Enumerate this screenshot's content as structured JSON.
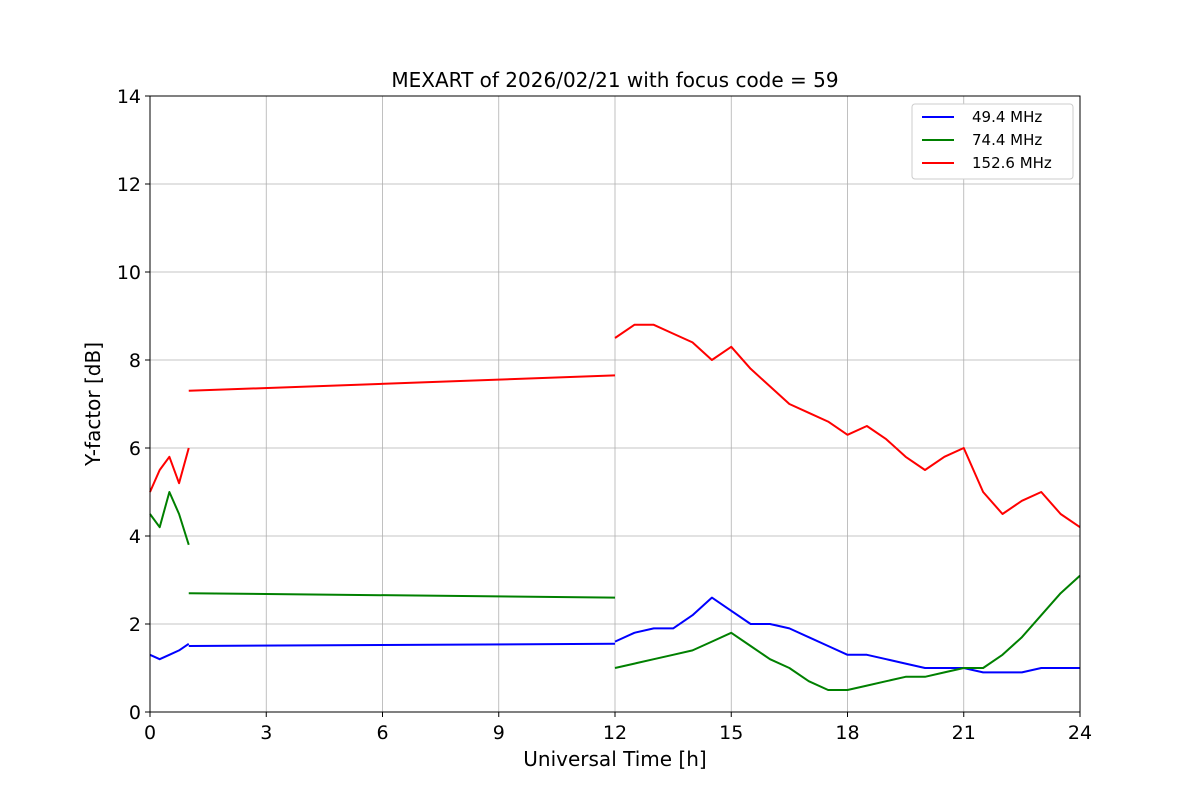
{
  "chart_data": {
    "type": "line",
    "title": "MEXART of 2026/02/21 with focus code = 59",
    "xlabel": "Universal Time [h]",
    "ylabel": "Y-factor [dB]",
    "xlim": [
      0,
      24
    ],
    "ylim": [
      0,
      14
    ],
    "xticks": [
      0,
      3,
      6,
      9,
      12,
      15,
      18,
      21,
      24
    ],
    "yticks": [
      0,
      2,
      4,
      6,
      8,
      10,
      12,
      14
    ],
    "grid": true,
    "legend": "top-right",
    "series": [
      {
        "name": " 49.4 MHz",
        "color": "#0000ff",
        "segments": [
          {
            "x": [
              0,
              0.25,
              0.5,
              0.75,
              1.0
            ],
            "y": [
              1.3,
              1.2,
              1.3,
              1.4,
              1.55
            ]
          },
          {
            "x": [
              1.0,
              12.0
            ],
            "y": [
              1.5,
              1.55
            ]
          },
          {
            "x": [
              12.0,
              12.5,
              13.0,
              13.5,
              14.0,
              14.5,
              15.0,
              15.5,
              16.0,
              16.5,
              17.0,
              17.5,
              18.0,
              18.5,
              19.0,
              19.5,
              20.0,
              20.5,
              21.0,
              21.5,
              22.0,
              22.5,
              23.0,
              23.5,
              24.0
            ],
            "y": [
              1.6,
              1.8,
              1.9,
              1.9,
              2.2,
              2.6,
              2.3,
              2.0,
              2.0,
              1.9,
              1.7,
              1.5,
              1.3,
              1.3,
              1.2,
              1.1,
              1.0,
              1.0,
              1.0,
              0.9,
              0.9,
              0.9,
              1.0,
              1.0,
              1.0
            ]
          }
        ]
      },
      {
        "name": " 74.4 MHz",
        "color": "#008000",
        "segments": [
          {
            "x": [
              0,
              0.25,
              0.5,
              0.75,
              1.0
            ],
            "y": [
              4.5,
              4.2,
              5.0,
              4.5,
              3.8
            ]
          },
          {
            "x": [
              1.0,
              12.0
            ],
            "y": [
              2.7,
              2.6
            ]
          },
          {
            "x": [
              12.0,
              12.5,
              13.0,
              13.5,
              14.0,
              14.5,
              15.0,
              15.5,
              16.0,
              16.5,
              17.0,
              17.5,
              18.0,
              18.5,
              19.0,
              19.5,
              20.0,
              20.5,
              21.0,
              21.5,
              22.0,
              22.5,
              23.0,
              23.5,
              24.0
            ],
            "y": [
              1.0,
              1.1,
              1.2,
              1.3,
              1.4,
              1.6,
              1.8,
              1.5,
              1.2,
              1.0,
              0.7,
              0.5,
              0.5,
              0.6,
              0.7,
              0.8,
              0.8,
              0.9,
              1.0,
              1.0,
              1.3,
              1.7,
              2.2,
              2.7,
              3.1
            ]
          }
        ]
      },
      {
        "name": "152.6 MHz",
        "color": "#ff0000",
        "segments": [
          {
            "x": [
              0,
              0.25,
              0.5,
              0.75,
              1.0
            ],
            "y": [
              5.0,
              5.5,
              5.8,
              5.2,
              6.0
            ]
          },
          {
            "x": [
              1.0,
              12.0
            ],
            "y": [
              7.3,
              7.65
            ]
          },
          {
            "x": [
              12.0,
              12.5,
              13.0,
              13.5,
              14.0,
              14.5,
              15.0,
              15.5,
              16.0,
              16.5,
              17.0,
              17.5,
              18.0,
              18.5,
              19.0,
              19.5,
              20.0,
              20.5,
              21.0,
              21.5,
              22.0,
              22.5,
              23.0,
              23.5,
              24.0
            ],
            "y": [
              8.5,
              8.8,
              8.8,
              8.6,
              8.4,
              8.0,
              8.3,
              7.8,
              7.4,
              7.0,
              6.8,
              6.6,
              6.3,
              6.5,
              6.2,
              5.8,
              5.5,
              5.8,
              6.0,
              5.0,
              4.5,
              4.8,
              5.0,
              4.5,
              4.2
            ]
          }
        ]
      }
    ]
  }
}
